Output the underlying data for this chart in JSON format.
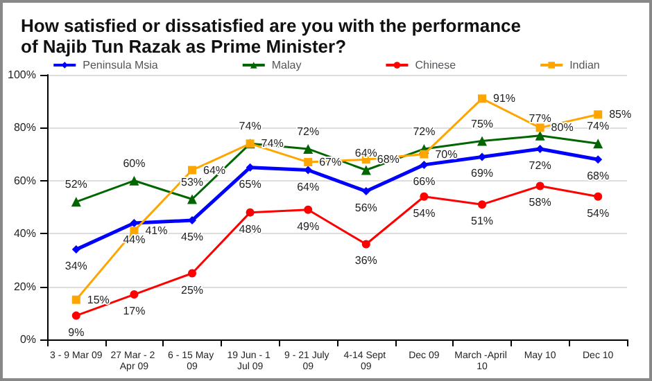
{
  "chart_data": {
    "type": "line",
    "title": "How satisfied or dissatisfied are you with the performance\nof Najib Tun Razak as Prime Minister?",
    "categories": [
      "3 - 9 Mar 09",
      "27 Mar - 2 Apr 09",
      "6 - 15 May 09",
      "19 Jun - 1 Jul 09",
      "9 - 21 July 09",
      "4-14 Sept 09",
      "Dec 09",
      "March -April 10",
      "May 10",
      "Dec 10"
    ],
    "series": [
      {
        "name": "Peninsula Msia",
        "color": "#0000ff",
        "marker": "diamond",
        "values": [
          34,
          44,
          45,
          65,
          64,
          56,
          66,
          69,
          72,
          68
        ],
        "value_labels": [
          "34%",
          "44%",
          "45%",
          "65%",
          "64%",
          "56%",
          "66%",
          "69%",
          "72%",
          "68%"
        ]
      },
      {
        "name": "Malay",
        "color": "#006600",
        "marker": "triangle",
        "values": [
          52,
          60,
          53,
          74,
          72,
          64,
          72,
          75,
          77,
          74
        ],
        "value_labels": [
          "52%",
          "60%",
          "53%",
          "74%",
          "72%",
          "64%",
          "72%",
          "75%",
          "77%",
          "74%"
        ]
      },
      {
        "name": "Chinese",
        "color": "#ff0000",
        "marker": "circle",
        "values": [
          9,
          17,
          25,
          48,
          49,
          36,
          54,
          51,
          58,
          54
        ],
        "value_labels": [
          "9%",
          "17%",
          "25%",
          "48%",
          "49%",
          "36%",
          "54%",
          "51%",
          "58%",
          "54%"
        ]
      },
      {
        "name": "Indian",
        "color": "#ffa500",
        "marker": "square",
        "values": [
          15,
          41,
          64,
          74,
          67,
          68,
          70,
          91,
          80,
          85
        ],
        "value_labels": [
          "15%",
          "41%",
          "64%",
          "74%",
          "67%",
          "68%",
          "70%",
          "91%",
          "80%",
          "85%"
        ]
      }
    ],
    "ylim": [
      0,
      100
    ],
    "yticks": [
      {
        "value": 0,
        "label": "0%"
      },
      {
        "value": 20,
        "label": "20%"
      },
      {
        "value": 40,
        "label": "40%"
      },
      {
        "value": 60,
        "label": "60%"
      },
      {
        "value": 80,
        "label": "80%"
      },
      {
        "value": 100,
        "label": "100%"
      }
    ],
    "grid": "y",
    "legend": "top"
  }
}
